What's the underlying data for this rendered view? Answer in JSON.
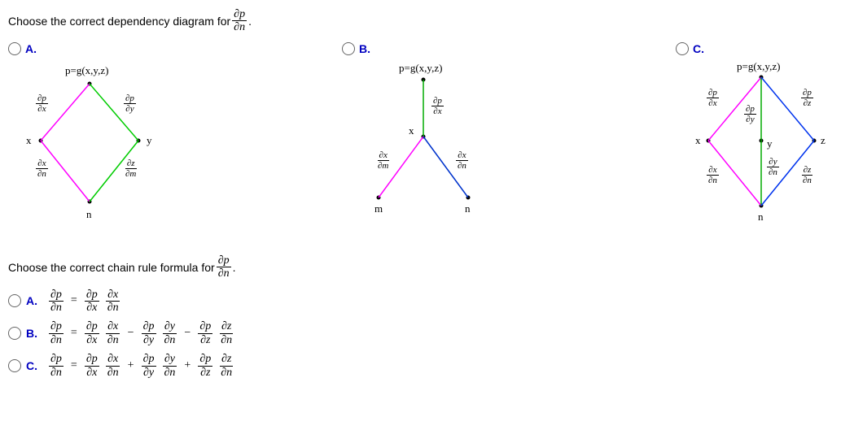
{
  "q1": {
    "prompt_prefix": "Choose the correct dependency diagram for ",
    "frac_num": "∂p",
    "frac_den": "∂n",
    "period": ".",
    "options": {
      "A": {
        "letter": "A.",
        "top_label": "p=g(x,y,z)",
        "colors": {
          "left_edge": "#ff00ff",
          "right_edge": "#00cc00",
          "bl_edge": "#ff00ff",
          "br_edge": "#00cc00"
        },
        "nodes": {
          "left": "x",
          "right": "y",
          "bottom": "n"
        },
        "edge_labels": {
          "tl_num": "∂p",
          "tl_den": "∂x",
          "tr_num": "∂p",
          "tr_den": "∂y",
          "bl_num": "∂x",
          "bl_den": "∂n",
          "br_num": "∂z",
          "br_den": "∂m"
        }
      },
      "B": {
        "letter": "B.",
        "top_label": "p=g(x,y,z)",
        "colors": {
          "stem": "#00aa00",
          "left": "#ff00ff",
          "right": "#0033cc"
        },
        "nodes": {
          "mid": "x",
          "bl": "m",
          "br": "n"
        },
        "edge_labels": {
          "stem_num": "∂p",
          "stem_den": "∂x",
          "bl_num": "∂x",
          "bl_den": "∂m",
          "br_num": "∂x",
          "br_den": "∂n"
        }
      },
      "C": {
        "letter": "C.",
        "top_label": "p=g(x,y,z)",
        "colors": {
          "l": "#ff00ff",
          "m": "#00aa00",
          "r": "#0033ee"
        },
        "nodes": {
          "l": "x",
          "m": "y",
          "r": "z",
          "bottom": "n"
        },
        "edge_labels": {
          "tl_num": "∂p",
          "tl_den": "∂x",
          "tm_num": "∂p",
          "tm_den": "∂y",
          "tr_num": "∂p",
          "tr_den": "∂z",
          "bl_num": "∂x",
          "bl_den": "∂n",
          "bm_num": "∂y",
          "bm_den": "∂n",
          "br_num": "∂z",
          "br_den": "∂n"
        }
      }
    }
  },
  "q2": {
    "prompt_prefix": "Choose the correct chain rule formula for ",
    "frac_num": "∂p",
    "frac_den": "∂n",
    "period": ".",
    "options": {
      "A": {
        "letter": "A.",
        "lhs_num": "∂p",
        "lhs_den": "∂n",
        "terms": [
          {
            "n1": "∂p",
            "d1": "∂x",
            "n2": "∂x",
            "d2": "∂n"
          }
        ],
        "ops": []
      },
      "B": {
        "letter": "B.",
        "lhs_num": "∂p",
        "lhs_den": "∂n",
        "terms": [
          {
            "n1": "∂p",
            "d1": "∂x",
            "n2": "∂x",
            "d2": "∂n"
          },
          {
            "n1": "∂p",
            "d1": "∂y",
            "n2": "∂y",
            "d2": "∂n"
          },
          {
            "n1": "∂p",
            "d1": "∂z",
            "n2": "∂z",
            "d2": "∂n"
          }
        ],
        "ops": [
          "−",
          "−"
        ]
      },
      "C": {
        "letter": "C.",
        "lhs_num": "∂p",
        "lhs_den": "∂n",
        "terms": [
          {
            "n1": "∂p",
            "d1": "∂x",
            "n2": "∂x",
            "d2": "∂n"
          },
          {
            "n1": "∂p",
            "d1": "∂y",
            "n2": "∂y",
            "d2": "∂n"
          },
          {
            "n1": "∂p",
            "d1": "∂z",
            "n2": "∂z",
            "d2": "∂n"
          }
        ],
        "ops": [
          "+",
          "+"
        ]
      }
    }
  }
}
